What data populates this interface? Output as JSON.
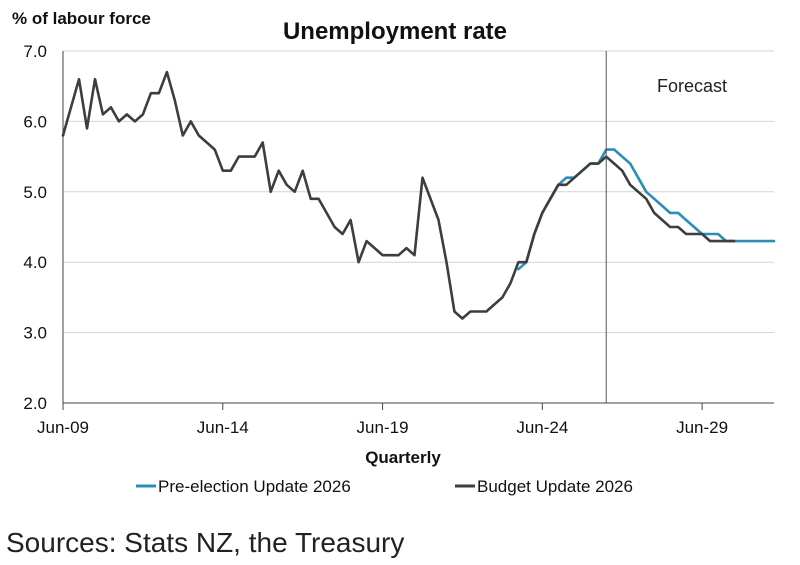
{
  "chart_data": {
    "type": "line",
    "title": "Unemployment rate",
    "ylabel": "% of labour force",
    "xlabel": "Quarterly",
    "ylim": [
      2.0,
      7.0
    ],
    "yticks": [
      "2.0",
      "3.0",
      "4.0",
      "5.0",
      "6.0",
      "7.0"
    ],
    "xticks": [
      "Jun-09",
      "Jun-14",
      "Jun-19",
      "Jun-24",
      "Jun-29"
    ],
    "grid": true,
    "forecast_label": "Forecast",
    "forecast_start": 2026.5,
    "series": [
      {
        "name": "Pre-election Update 2026",
        "color": "#2b8fb5",
        "points": [
          [
            2023.75,
            3.9
          ],
          [
            2024.0,
            4.0
          ],
          [
            2024.25,
            4.4
          ],
          [
            2024.5,
            4.7
          ],
          [
            2024.75,
            4.9
          ],
          [
            2025.0,
            5.1
          ],
          [
            2025.25,
            5.2
          ],
          [
            2025.5,
            5.2
          ],
          [
            2025.75,
            5.3
          ],
          [
            2026.0,
            5.4
          ],
          [
            2026.25,
            5.4
          ],
          [
            2026.5,
            5.6
          ],
          [
            2026.75,
            5.6
          ],
          [
            2027.0,
            5.5
          ],
          [
            2027.25,
            5.4
          ],
          [
            2027.5,
            5.2
          ],
          [
            2027.75,
            5.0
          ],
          [
            2028.0,
            4.9
          ],
          [
            2028.25,
            4.8
          ],
          [
            2028.5,
            4.7
          ],
          [
            2028.75,
            4.7
          ],
          [
            2029.0,
            4.6
          ],
          [
            2029.25,
            4.5
          ],
          [
            2029.5,
            4.4
          ],
          [
            2029.75,
            4.4
          ],
          [
            2030.0,
            4.4
          ],
          [
            2030.25,
            4.3
          ],
          [
            2030.5,
            4.3
          ],
          [
            2030.75,
            4.3
          ],
          [
            2031.0,
            4.3
          ],
          [
            2031.25,
            4.3
          ],
          [
            2031.5,
            4.3
          ],
          [
            2031.75,
            4.3
          ]
        ]
      },
      {
        "name": "Budget Update 2026",
        "color": "#3b3f3d",
        "points": [
          [
            2009.5,
            5.8
          ],
          [
            2009.75,
            6.2
          ],
          [
            2010.0,
            6.6
          ],
          [
            2010.25,
            5.9
          ],
          [
            2010.5,
            6.6
          ],
          [
            2010.75,
            6.1
          ],
          [
            2011.0,
            6.2
          ],
          [
            2011.25,
            6.0
          ],
          [
            2011.5,
            6.1
          ],
          [
            2011.75,
            6.0
          ],
          [
            2012.0,
            6.1
          ],
          [
            2012.25,
            6.4
          ],
          [
            2012.5,
            6.4
          ],
          [
            2012.75,
            6.7
          ],
          [
            2013.0,
            6.3
          ],
          [
            2013.25,
            5.8
          ],
          [
            2013.5,
            6.0
          ],
          [
            2013.75,
            5.8
          ],
          [
            2014.0,
            5.7
          ],
          [
            2014.25,
            5.6
          ],
          [
            2014.5,
            5.3
          ],
          [
            2014.75,
            5.3
          ],
          [
            2015.0,
            5.5
          ],
          [
            2015.25,
            5.5
          ],
          [
            2015.5,
            5.5
          ],
          [
            2015.75,
            5.7
          ],
          [
            2016.0,
            5.0
          ],
          [
            2016.25,
            5.3
          ],
          [
            2016.5,
            5.1
          ],
          [
            2016.75,
            5.0
          ],
          [
            2017.0,
            5.3
          ],
          [
            2017.25,
            4.9
          ],
          [
            2017.5,
            4.9
          ],
          [
            2017.75,
            4.7
          ],
          [
            2018.0,
            4.5
          ],
          [
            2018.25,
            4.4
          ],
          [
            2018.5,
            4.6
          ],
          [
            2018.75,
            4.0
          ],
          [
            2019.0,
            4.3
          ],
          [
            2019.25,
            4.2
          ],
          [
            2019.5,
            4.1
          ],
          [
            2019.75,
            4.1
          ],
          [
            2020.0,
            4.1
          ],
          [
            2020.25,
            4.2
          ],
          [
            2020.5,
            4.1
          ],
          [
            2020.75,
            5.2
          ],
          [
            2021.0,
            4.9
          ],
          [
            2021.25,
            4.6
          ],
          [
            2021.5,
            4.0
          ],
          [
            2021.75,
            3.3
          ],
          [
            2022.0,
            3.2
          ],
          [
            2022.25,
            3.3
          ],
          [
            2022.5,
            3.3
          ],
          [
            2022.75,
            3.3
          ],
          [
            2023.0,
            3.4
          ],
          [
            2023.25,
            3.5
          ],
          [
            2023.5,
            3.7
          ],
          [
            2023.75,
            4.0
          ],
          [
            2024.0,
            4.0
          ],
          [
            2024.25,
            4.4
          ],
          [
            2024.5,
            4.7
          ],
          [
            2024.75,
            4.9
          ],
          [
            2025.0,
            5.1
          ],
          [
            2025.25,
            5.1
          ],
          [
            2025.5,
            5.2
          ],
          [
            2025.75,
            5.3
          ],
          [
            2026.0,
            5.4
          ],
          [
            2026.25,
            5.4
          ],
          [
            2026.5,
            5.5
          ],
          [
            2026.75,
            5.4
          ],
          [
            2027.0,
            5.3
          ],
          [
            2027.25,
            5.1
          ],
          [
            2027.5,
            5.0
          ],
          [
            2027.75,
            4.9
          ],
          [
            2028.0,
            4.7
          ],
          [
            2028.25,
            4.6
          ],
          [
            2028.5,
            4.5
          ],
          [
            2028.75,
            4.5
          ],
          [
            2029.0,
            4.4
          ],
          [
            2029.25,
            4.4
          ],
          [
            2029.5,
            4.4
          ],
          [
            2029.75,
            4.3
          ],
          [
            2030.0,
            4.3
          ],
          [
            2030.25,
            4.3
          ],
          [
            2030.5,
            4.3
          ]
        ]
      }
    ]
  },
  "source_text": "Sources: Stats NZ, the Treasury"
}
